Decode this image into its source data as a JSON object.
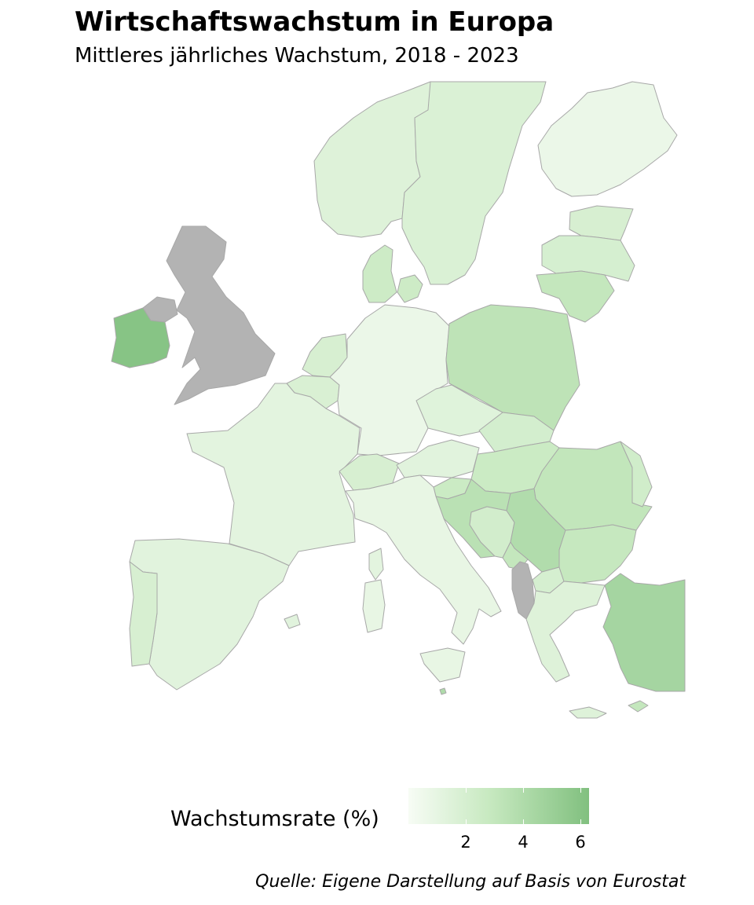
{
  "title": "Wirtschaftswachstum in Europa",
  "subtitle": "Mittleres jährliches Wachstum, 2018 - 2023",
  "legend": {
    "title": "Wachstumsrate (%)",
    "ticks": [
      "2",
      "4",
      "6"
    ],
    "range": [
      0,
      6.3
    ],
    "colors": [
      "#f7fcf5",
      "#c7e9c0",
      "#81c07f"
    ]
  },
  "source": "Quelle: Eigene Darstellung auf Basis von Eurostat",
  "no_data_color": "#b3b3b3",
  "regions": [
    {
      "id": "no",
      "value": 1.5
    },
    {
      "id": "se",
      "value": 1.7
    },
    {
      "id": "fi",
      "value": 0.7
    },
    {
      "id": "ee",
      "value": 1.9
    },
    {
      "id": "lv",
      "value": 2.0
    },
    {
      "id": "lt",
      "value": 3.0
    },
    {
      "id": "dk",
      "value": 2.5
    },
    {
      "id": "gb",
      "value": null
    },
    {
      "id": "gb-ni",
      "value": null
    },
    {
      "id": "ie",
      "value": 6.0
    },
    {
      "id": "nl",
      "value": 1.9
    },
    {
      "id": "be",
      "value": 1.8
    },
    {
      "id": "de",
      "value": 0.7
    },
    {
      "id": "pl",
      "value": 3.3
    },
    {
      "id": "fr",
      "value": 1.2
    },
    {
      "id": "ch",
      "value": 1.9
    },
    {
      "id": "at",
      "value": 1.3
    },
    {
      "id": "cz",
      "value": 1.4
    },
    {
      "id": "sk",
      "value": 2.1
    },
    {
      "id": "hu",
      "value": 2.6
    },
    {
      "id": "ro",
      "value": 3.1
    },
    {
      "id": "md",
      "value": 2.3
    },
    {
      "id": "si",
      "value": 2.6
    },
    {
      "id": "hr",
      "value": 3.5
    },
    {
      "id": "ba",
      "value": 2.2
    },
    {
      "id": "rs",
      "value": 3.9
    },
    {
      "id": "me",
      "value": 3.0
    },
    {
      "id": "mk",
      "value": 2.0
    },
    {
      "id": "al",
      "value": null
    },
    {
      "id": "bg",
      "value": 2.9
    },
    {
      "id": "gr",
      "value": 1.5
    },
    {
      "id": "it",
      "value": 0.9
    },
    {
      "id": "es",
      "value": 1.3
    },
    {
      "id": "pt",
      "value": 1.9
    },
    {
      "id": "tr",
      "value": 4.5
    },
    {
      "id": "cy",
      "value": 3.0
    },
    {
      "id": "mt",
      "value": 4.0
    }
  ]
}
